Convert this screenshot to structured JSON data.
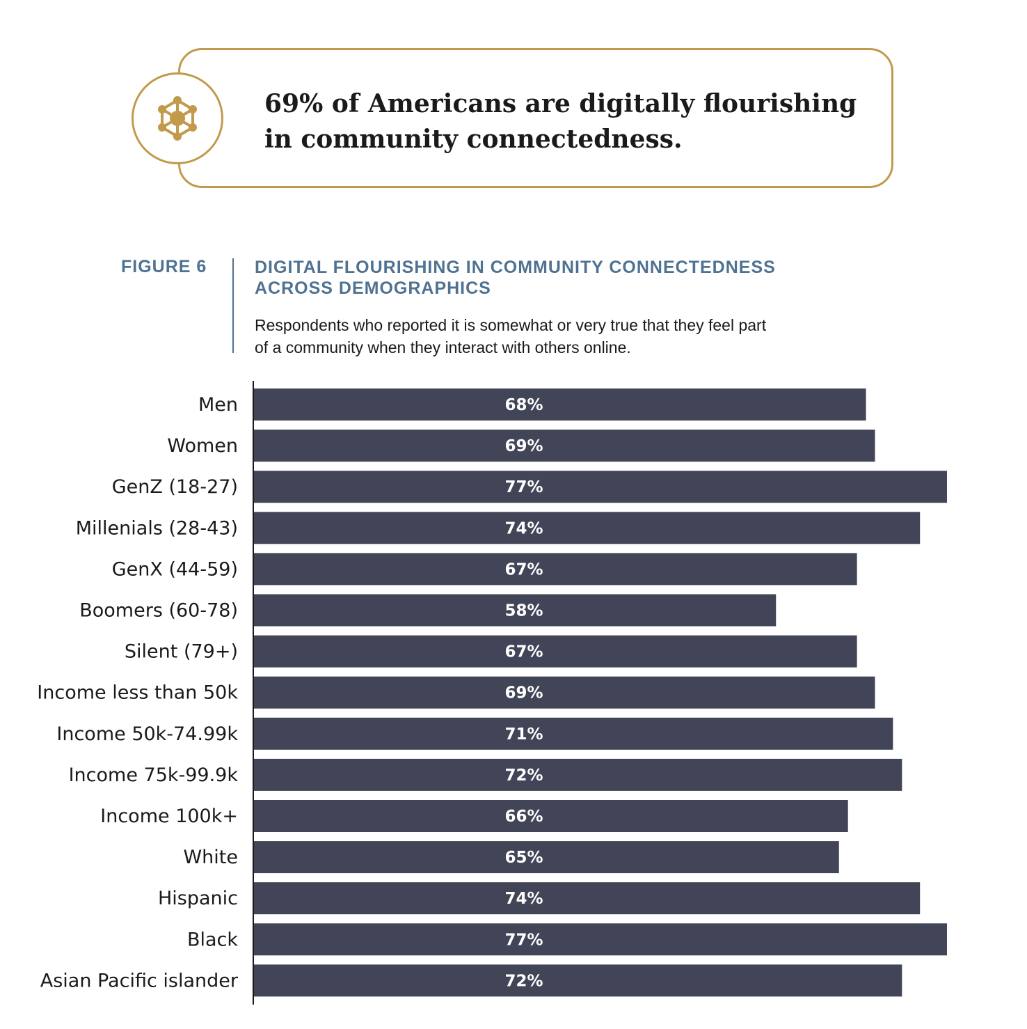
{
  "callout": {
    "icon": "community-network-icon",
    "text_line1": "69% of Americans are digitally flourishing",
    "text_line2": "in community connectedness."
  },
  "figure": {
    "label": "FIGURE 6",
    "title_line1": "DIGITAL FLOURISHING IN COMMUNITY CONNECTEDNESS",
    "title_line2": "ACROSS DEMOGRAPHICS",
    "subtitle_line1": "Respondents who reported it is somewhat or very true that they feel part",
    "subtitle_line2": "of a community when they interact with others online."
  },
  "colors": {
    "bar": "#424457",
    "accent_gold": "#c19a4b",
    "heading_blue": "#4f7292",
    "value_text": "#ffffff"
  },
  "chart_data": {
    "type": "bar",
    "orientation": "horizontal",
    "categories": [
      "Men",
      "Women",
      "GenZ (18-27)",
      "Millenials (28-43)",
      "GenX (44-59)",
      "Boomers (60-78)",
      "Silent (79+)",
      "Income less than 50k",
      "Income 50k-74.99k",
      "Income  75k-99.9k",
      "Income 100k+",
      "White",
      "Hispanic",
      "Black",
      "Asian Pacific islander"
    ],
    "values": [
      68,
      69,
      77,
      74,
      67,
      58,
      67,
      69,
      71,
      72,
      66,
      65,
      74,
      77,
      72
    ],
    "value_labels": [
      "68%",
      "69%",
      "77%",
      "74%",
      "67%",
      "58%",
      "67%",
      "69%",
      "71%",
      "72%",
      "66%",
      "65%",
      "74%",
      "77%",
      "72%"
    ],
    "xlim": [
      0,
      77
    ],
    "grid": false,
    "legend": "none"
  }
}
